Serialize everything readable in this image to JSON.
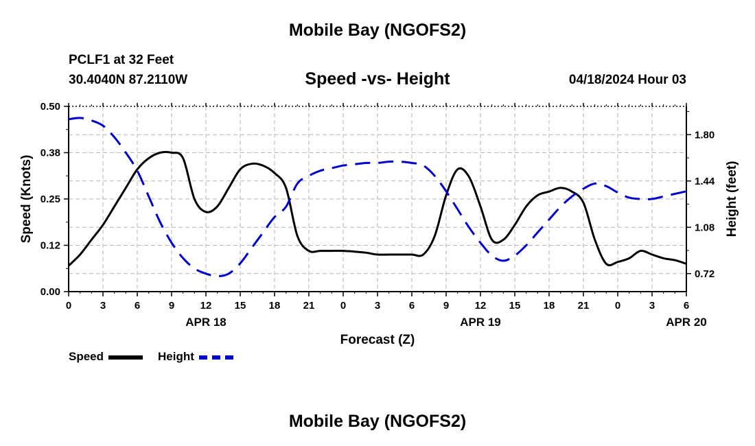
{
  "header": {
    "title": "Mobile Bay (NGOFS2)",
    "station": "PCLF1 at 32 Feet",
    "coords": "30.4040N  87.2110W",
    "subtitle": "Speed -vs- Height",
    "datetime": "04/18/2024 Hour 03"
  },
  "footer": {
    "title": "Mobile Bay (NGOFS2)"
  },
  "legend": {
    "speed_label": "Speed",
    "height_label": "Height"
  },
  "chart_data": {
    "type": "line",
    "subtitle": "Speed -vs- Height",
    "xlabel": "Forecast (Z)",
    "ylabel": "Speed (Knots)",
    "y2label": "Height (feet)",
    "x_tick_labels": [
      "0",
      "3",
      "6",
      "9",
      "12",
      "15",
      "18",
      "21",
      "0",
      "3",
      "6",
      "9",
      "12",
      "15",
      "18",
      "21",
      "0",
      "3",
      "6"
    ],
    "date_labels": [
      {
        "label": "APR 18",
        "hour": 12
      },
      {
        "label": "APR 19",
        "hour": 36
      },
      {
        "label": "APR 20",
        "hour": 54
      }
    ],
    "xlim": [
      0,
      54
    ],
    "ylim": [
      0,
      0.5
    ],
    "y_ticks": [
      "0.00",
      "0.12",
      "0.25",
      "0.38",
      "0.50"
    ],
    "y2lim": [
      0.58,
      2.02
    ],
    "y2_ticks": [
      "0.72",
      "1.08",
      "1.44",
      "1.80"
    ],
    "grid": true,
    "colors": {
      "speed": "#000000",
      "height": "#0000cc"
    },
    "series": [
      {
        "name": "Speed",
        "axis": "left",
        "style": "solid",
        "x": [
          0,
          1,
          2,
          3,
          4,
          5,
          6,
          7,
          8,
          9,
          10,
          11,
          12,
          13,
          14,
          15,
          16,
          17,
          18,
          19,
          20,
          21,
          22,
          23,
          24,
          25,
          26,
          27,
          28,
          29,
          30,
          31,
          32,
          33,
          34,
          35,
          36,
          37,
          38,
          39,
          40,
          41,
          42,
          43,
          44,
          45,
          46,
          47,
          48,
          49,
          50,
          51,
          52,
          53,
          54
        ],
        "values": [
          0.07,
          0.1,
          0.14,
          0.18,
          0.23,
          0.28,
          0.33,
          0.36,
          0.375,
          0.375,
          0.36,
          0.25,
          0.215,
          0.23,
          0.28,
          0.33,
          0.345,
          0.34,
          0.32,
          0.28,
          0.15,
          0.11,
          0.11,
          0.11,
          0.11,
          0.108,
          0.105,
          0.1,
          0.1,
          0.1,
          0.1,
          0.1,
          0.15,
          0.26,
          0.33,
          0.31,
          0.23,
          0.14,
          0.14,
          0.18,
          0.23,
          0.26,
          0.27,
          0.28,
          0.27,
          0.24,
          0.14,
          0.075,
          0.08,
          0.09,
          0.11,
          0.1,
          0.09,
          0.085,
          0.075
        ]
      },
      {
        "name": "Height",
        "axis": "right",
        "style": "dashed",
        "x": [
          0,
          1,
          2,
          3,
          4,
          5,
          6,
          7,
          8,
          9,
          10,
          11,
          12,
          13,
          14,
          15,
          16,
          17,
          18,
          19,
          20,
          21,
          22,
          23,
          24,
          25,
          26,
          27,
          28,
          29,
          30,
          31,
          32,
          33,
          34,
          35,
          36,
          37,
          38,
          39,
          40,
          41,
          42,
          43,
          44,
          45,
          46,
          47,
          48,
          49,
          50,
          51,
          52,
          53,
          54
        ],
        "values": [
          1.92,
          1.93,
          1.91,
          1.87,
          1.78,
          1.66,
          1.52,
          1.32,
          1.12,
          0.96,
          0.84,
          0.76,
          0.72,
          0.7,
          0.72,
          0.8,
          0.92,
          1.04,
          1.16,
          1.24,
          1.42,
          1.48,
          1.52,
          1.54,
          1.56,
          1.57,
          1.58,
          1.58,
          1.59,
          1.59,
          1.58,
          1.56,
          1.48,
          1.36,
          1.22,
          1.08,
          0.96,
          0.86,
          0.82,
          0.86,
          0.94,
          1.04,
          1.14,
          1.24,
          1.32,
          1.38,
          1.42,
          1.4,
          1.35,
          1.31,
          1.3,
          1.3,
          1.32,
          1.34,
          1.36
        ]
      }
    ]
  }
}
